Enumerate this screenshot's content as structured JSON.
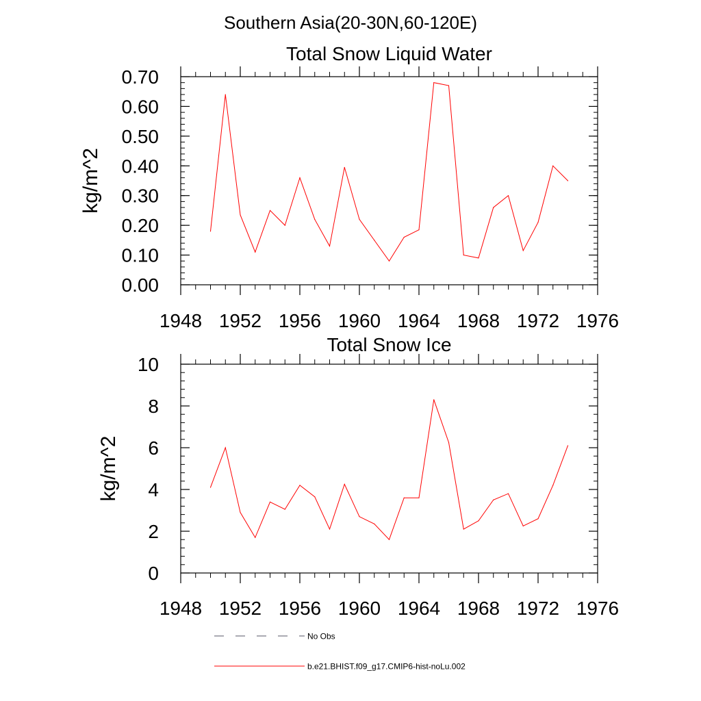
{
  "page": {
    "main_title": "Southern Asia(20-30N,60-120E)"
  },
  "colors": {
    "model_series": "#ff0000",
    "obs_series": "#000000",
    "axis": "#000000"
  },
  "legend": {
    "placement": "bottom",
    "items": [
      {
        "label": "No Obs",
        "style": "dashed",
        "color": "#000000"
      },
      {
        "label": "b.e21.BHIST.f09_g17.CMIP6-hist-noLu.002",
        "style": "solid",
        "color": "#ff0000"
      }
    ]
  },
  "chart_data": [
    {
      "type": "line",
      "title": "Total Snow Liquid Water",
      "xlabel": "",
      "ylabel": "kg/m^2",
      "xlim": [
        1948,
        1976
      ],
      "ylim": [
        0,
        0.7
      ],
      "x_ticks": [
        1948,
        1952,
        1956,
        1960,
        1964,
        1968,
        1972,
        1976
      ],
      "x_tick_labels": [
        "1948",
        "1952",
        "1956",
        "1960",
        "1964",
        "1968",
        "1972",
        "1976"
      ],
      "y_ticks": [
        0,
        0.1,
        0.2,
        0.3,
        0.4,
        0.5,
        0.6,
        0.7
      ],
      "y_tick_labels": [
        "0.00",
        "0.10",
        "0.20",
        "0.30",
        "0.40",
        "0.50",
        "0.60",
        "0.70"
      ],
      "y_minor_step": 0.02,
      "x_minor_step": 1,
      "grid": false,
      "series": [
        {
          "name": "b.e21.BHIST.f09_g17.CMIP6-hist-noLu.002",
          "color": "#ff0000",
          "x": [
            1950,
            1951,
            1952,
            1953,
            1954,
            1955,
            1956,
            1957,
            1958,
            1959,
            1960,
            1961,
            1962,
            1963,
            1964,
            1965,
            1966,
            1967,
            1968,
            1969,
            1970,
            1971,
            1972,
            1973,
            1974
          ],
          "y": [
            0.18,
            0.64,
            0.235,
            0.11,
            0.25,
            0.2,
            0.36,
            0.22,
            0.13,
            0.395,
            0.22,
            0.15,
            0.08,
            0.16,
            0.185,
            0.68,
            0.67,
            0.1,
            0.09,
            0.26,
            0.3,
            0.115,
            0.21,
            0.4,
            0.35
          ]
        }
      ]
    },
    {
      "type": "line",
      "title": "Total Snow Ice",
      "xlabel": "",
      "ylabel": "kg/m^2",
      "xlim": [
        1948,
        1976
      ],
      "ylim": [
        0,
        10
      ],
      "x_ticks": [
        1948,
        1952,
        1956,
        1960,
        1964,
        1968,
        1972,
        1976
      ],
      "x_tick_labels": [
        "1948",
        "1952",
        "1956",
        "1960",
        "1964",
        "1968",
        "1972",
        "1976"
      ],
      "y_ticks": [
        0,
        2,
        4,
        6,
        8,
        10
      ],
      "y_tick_labels": [
        "0",
        "2",
        "4",
        "6",
        "8",
        "10"
      ],
      "y_minor_step": 0.4,
      "x_minor_step": 1,
      "grid": false,
      "series": [
        {
          "name": "b.e21.BHIST.f09_g17.CMIP6-hist-noLu.002",
          "color": "#ff0000",
          "x": [
            1950,
            1951,
            1952,
            1953,
            1954,
            1955,
            1956,
            1957,
            1958,
            1959,
            1960,
            1961,
            1962,
            1963,
            1964,
            1965,
            1966,
            1967,
            1968,
            1969,
            1970,
            1971,
            1972,
            1973,
            1974
          ],
          "y": [
            4.1,
            6.0,
            2.9,
            1.7,
            3.4,
            3.05,
            4.2,
            3.65,
            2.1,
            4.25,
            2.7,
            2.35,
            1.6,
            3.6,
            3.6,
            8.3,
            6.25,
            2.1,
            2.5,
            3.5,
            3.8,
            2.25,
            2.6,
            4.2,
            6.1
          ]
        }
      ]
    }
  ]
}
